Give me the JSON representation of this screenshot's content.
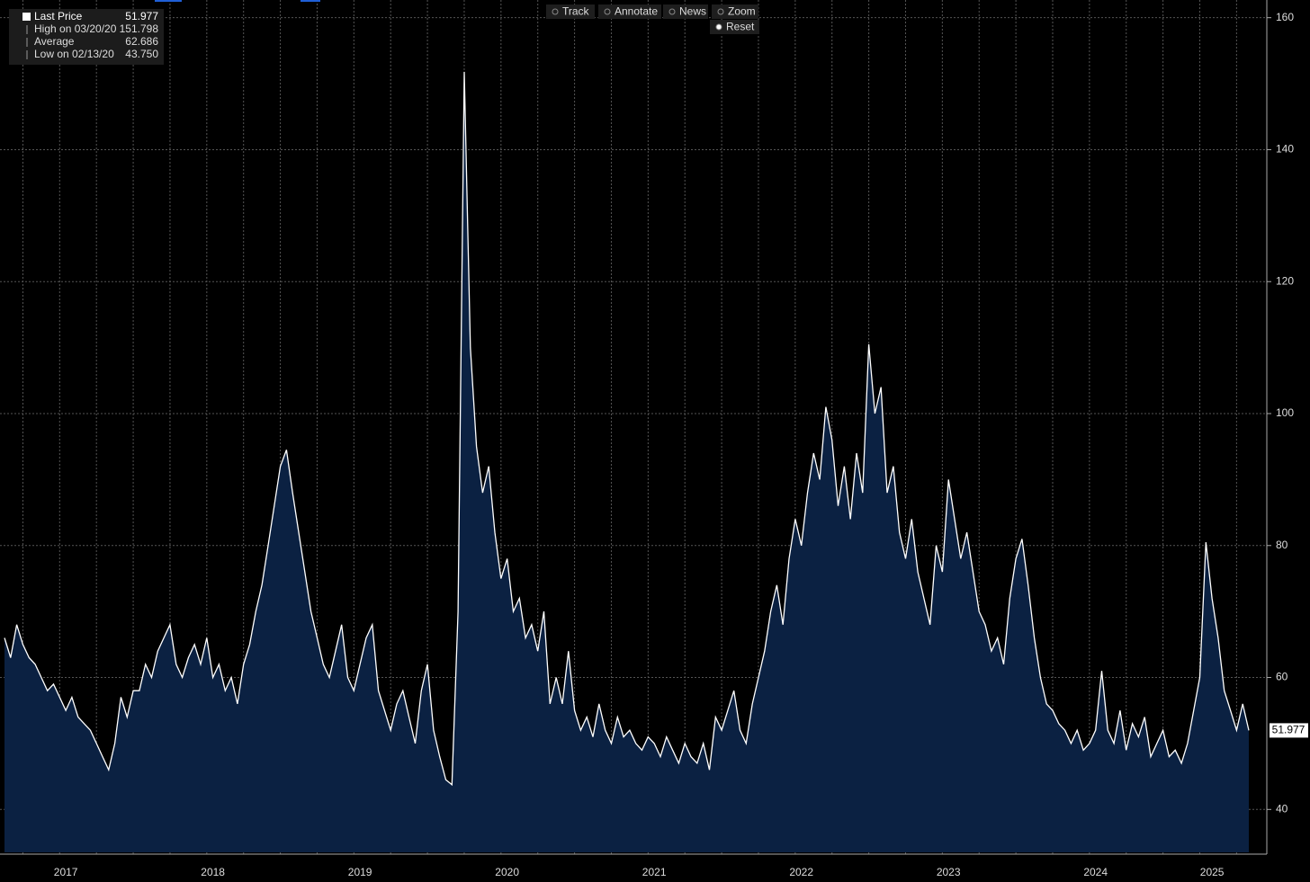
{
  "chart_data": {
    "type": "area",
    "toolbar": [
      "Track",
      "Annotate",
      "News",
      "Zoom",
      "Reset"
    ],
    "stats": [
      {
        "label": "High on 03/20/20",
        "value": "151.798"
      },
      {
        "label": "Average",
        "value": "62.686"
      },
      {
        "label": "Low on 02/13/20",
        "value": "43.750"
      }
    ],
    "categories": [
      null,
      null,
      null,
      null,
      null,
      null,
      null,
      null,
      null,
      null,
      "2017",
      null,
      null,
      null,
      null,
      null,
      null,
      null,
      null,
      null,
      null,
      null,
      null,
      null,
      null,
      null,
      null,
      null,
      null,
      null,
      null,
      null,
      null,
      null,
      "2018",
      null,
      null,
      null,
      null,
      null,
      null,
      null,
      null,
      null,
      null,
      null,
      null,
      null,
      null,
      null,
      null,
      null,
      null,
      null,
      null,
      null,
      null,
      null,
      "2019",
      null,
      null,
      null,
      null,
      null,
      null,
      null,
      null,
      null,
      null,
      null,
      null,
      null,
      null,
      null,
      null,
      null,
      null,
      null,
      null,
      null,
      null,
      null,
      "2020",
      null,
      null,
      null,
      null,
      null,
      null,
      null,
      null,
      null,
      null,
      null,
      null,
      null,
      null,
      null,
      null,
      null,
      null,
      null,
      null,
      null,
      null,
      null,
      "2021",
      null,
      null,
      null,
      null,
      null,
      null,
      null,
      null,
      null,
      null,
      null,
      null,
      null,
      null,
      null,
      null,
      null,
      null,
      null,
      null,
      null,
      null,
      null,
      "2022",
      null,
      null,
      null,
      null,
      null,
      null,
      null,
      null,
      null,
      null,
      null,
      null,
      null,
      null,
      null,
      null,
      null,
      null,
      null,
      null,
      null,
      null,
      null,
      "2023",
      null,
      null,
      null,
      null,
      null,
      null,
      null,
      null,
      null,
      null,
      null,
      null,
      null,
      null,
      null,
      null,
      null,
      null,
      null,
      null,
      null,
      null,
      null,
      "2024",
      null,
      null,
      null,
      null,
      null,
      null,
      null,
      null,
      null,
      null,
      null,
      null,
      null,
      null,
      null,
      null,
      null,
      null,
      "2025",
      null,
      null,
      null,
      null,
      null,
      null
    ],
    "series": [
      {
        "name": "Last Price",
        "color": "#ffffff",
        "fill": "#0b2142",
        "values": [
          66,
          63,
          68,
          65,
          63,
          62,
          60,
          58,
          59,
          57,
          55,
          57,
          54,
          53,
          52,
          50,
          48,
          46,
          50,
          57,
          54,
          58,
          58,
          62,
          60,
          64,
          66,
          68,
          62,
          60,
          63,
          65,
          62,
          66,
          60,
          62,
          58,
          60,
          56,
          62,
          65,
          70,
          74,
          80,
          86,
          92,
          94.5,
          88,
          82,
          76,
          70,
          66,
          62,
          60,
          64,
          68,
          60,
          58,
          62,
          66,
          68,
          58,
          55,
          52,
          56,
          58,
          54,
          50,
          58,
          62,
          52,
          48,
          44.5,
          43.75,
          70,
          151.798,
          110,
          95,
          88,
          92,
          82,
          75,
          78,
          70,
          72,
          66,
          68,
          64,
          70,
          56,
          60,
          56,
          64,
          55,
          52,
          54,
          51,
          56,
          52,
          50,
          54,
          51,
          52,
          50,
          49,
          51,
          50,
          48,
          51,
          49,
          47,
          50,
          48,
          47,
          50,
          46,
          54,
          52,
          55,
          58,
          52,
          50,
          56,
          60,
          64,
          70,
          74,
          68,
          78,
          84,
          80,
          88,
          94,
          90,
          101,
          96,
          86,
          92,
          84,
          94,
          88,
          110.5,
          100,
          104,
          88,
          92,
          82,
          78,
          84,
          76,
          72,
          68,
          80,
          76,
          90,
          84,
          78,
          82,
          76,
          70,
          68,
          64,
          66,
          62,
          72,
          78,
          81,
          74,
          66,
          60,
          56,
          55,
          53,
          52,
          50,
          52,
          49,
          50,
          52,
          61,
          52,
          50,
          55,
          49,
          53,
          51,
          54,
          48,
          50,
          52,
          48,
          49,
          47,
          50,
          55,
          60,
          80.5,
          72,
          66,
          58,
          55,
          52,
          56,
          51.977
        ]
      }
    ],
    "ylim": [
      33.5,
      162
    ],
    "yticks": [
      40,
      60,
      80,
      100,
      120,
      140,
      160
    ],
    "grid": true
  }
}
